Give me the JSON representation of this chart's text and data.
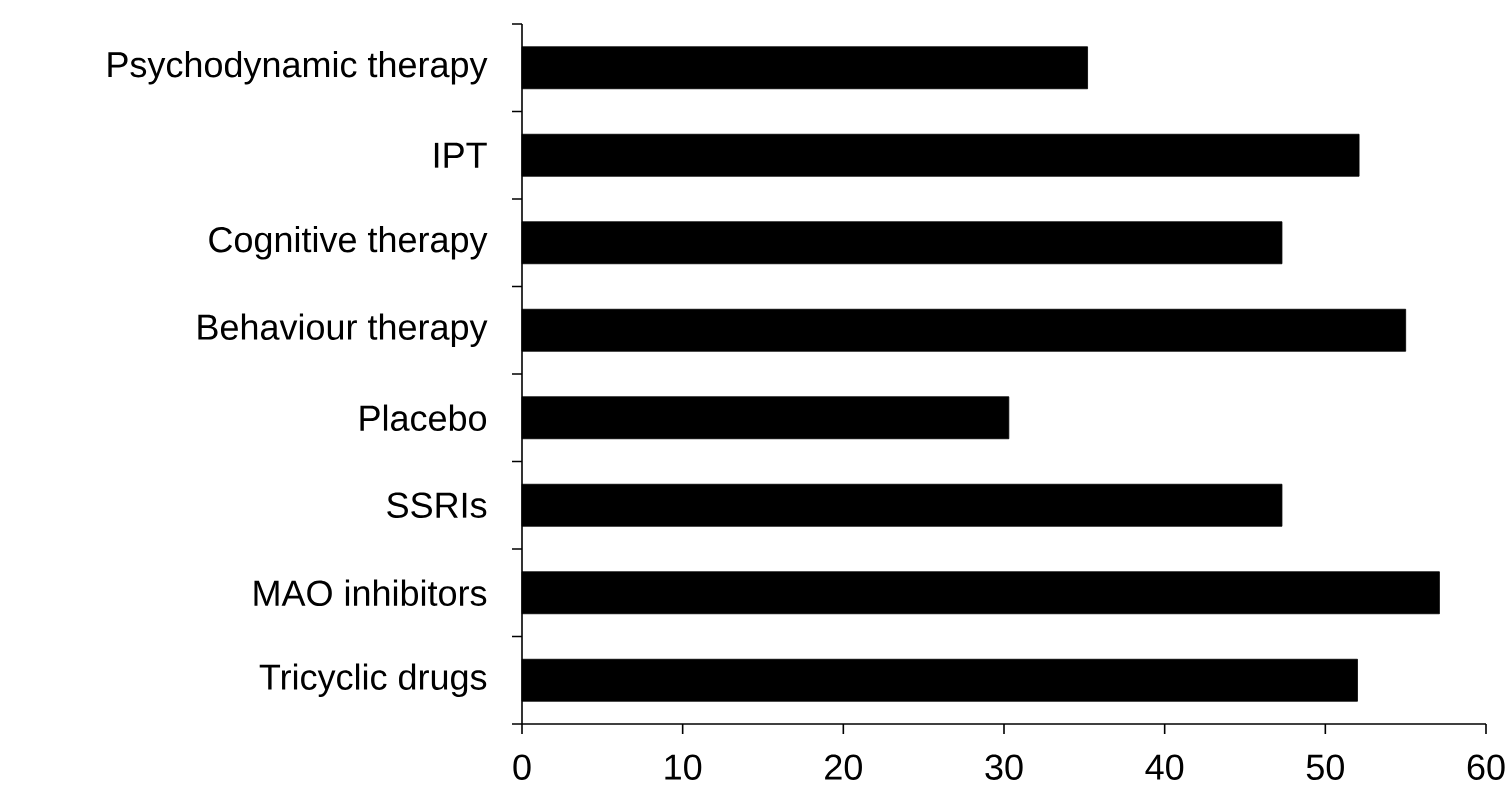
{
  "chart_data": {
    "type": "bar",
    "orientation": "horizontal",
    "categories": [
      "Psychodynamic therapy",
      "IPT",
      "Cognitive therapy",
      "Behaviour therapy",
      "Placebo",
      "SSRIs",
      "MAO inhibitors",
      "Tricyclic drugs"
    ],
    "values": [
      35.2,
      52.1,
      47.3,
      55.0,
      30.3,
      47.3,
      57.1,
      52.0
    ],
    "color": "#000000",
    "xlim": [
      0,
      60
    ],
    "xticks": [
      0,
      10,
      20,
      30,
      40,
      50,
      60
    ]
  }
}
